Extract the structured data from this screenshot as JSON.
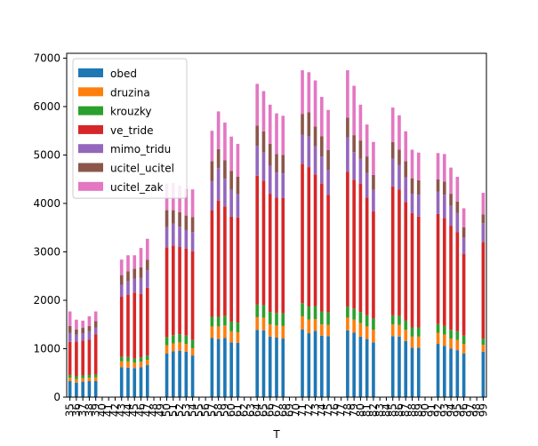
{
  "chart_data": {
    "type": "bar",
    "stacked": true,
    "xlabel": "T",
    "ylabel": "",
    "title": "",
    "ylim": [
      0,
      7100
    ],
    "yticks": [
      0,
      1000,
      2000,
      3000,
      4000,
      5000,
      6000,
      7000
    ],
    "grid": false,
    "legend": "top-left",
    "x_label_every": 1,
    "categories": [
      "35",
      "36",
      "37",
      "38",
      "39",
      "40",
      "41",
      "42",
      "43",
      "44",
      "45",
      "46",
      "47",
      "48",
      "49",
      "50",
      "51",
      "52",
      "53",
      "54",
      "55",
      "56",
      "57",
      "58",
      "59",
      "60",
      "61",
      "62",
      "63",
      "64",
      "65",
      "66",
      "67",
      "68",
      "69",
      "70",
      "71",
      "72",
      "73",
      "74",
      "75",
      "76",
      "77",
      "78",
      "79",
      "80",
      "81",
      "82",
      "83",
      "84",
      "85",
      "86",
      "87",
      "88",
      "89",
      "90",
      "91",
      "92",
      "93",
      "94",
      "95",
      "96",
      "97",
      "98",
      "99"
    ],
    "series": [
      {
        "name": "obed",
        "color": "#1f77b4",
        "values": [
          330,
          300,
          320,
          330,
          330,
          0,
          0,
          0,
          620,
          610,
          600,
          620,
          660,
          0,
          0,
          900,
          950,
          960,
          940,
          860,
          0,
          0,
          1220,
          1200,
          1220,
          1130,
          1120,
          0,
          0,
          1390,
          1380,
          1250,
          1230,
          1210,
          0,
          0,
          1400,
          1320,
          1370,
          1270,
          1260,
          0,
          0,
          1380,
          1330,
          1250,
          1200,
          1130,
          0,
          0,
          1260,
          1250,
          1160,
          1020,
          1020,
          0,
          0,
          1100,
          1060,
          1000,
          970,
          900,
          0,
          0,
          940
        ]
      },
      {
        "name": "druzina",
        "color": "#ff7f0e",
        "values": [
          70,
          70,
          70,
          70,
          80,
          0,
          0,
          0,
          120,
          130,
          110,
          110,
          110,
          0,
          0,
          170,
          160,
          170,
          160,
          150,
          0,
          0,
          240,
          260,
          260,
          230,
          220,
          0,
          0,
          260,
          260,
          250,
          250,
          260,
          0,
          0,
          270,
          280,
          240,
          230,
          230,
          0,
          0,
          260,
          270,
          280,
          260,
          260,
          0,
          0,
          240,
          240,
          230,
          230,
          230,
          0,
          0,
          230,
          230,
          210,
          210,
          200,
          0,
          0,
          140
        ]
      },
      {
        "name": "krouzky",
        "color": "#2ca02c",
        "values": [
          60,
          60,
          60,
          60,
          60,
          0,
          0,
          0,
          90,
          90,
          90,
          90,
          90,
          0,
          0,
          170,
          170,
          170,
          170,
          170,
          0,
          0,
          200,
          200,
          200,
          200,
          200,
          0,
          0,
          260,
          260,
          260,
          260,
          260,
          0,
          0,
          270,
          270,
          270,
          270,
          260,
          0,
          0,
          230,
          230,
          230,
          230,
          230,
          0,
          0,
          190,
          190,
          190,
          190,
          190,
          0,
          0,
          180,
          180,
          180,
          180,
          170,
          0,
          0,
          130
        ]
      },
      {
        "name": "ve_tride",
        "color": "#d62728",
        "values": [
          680,
          720,
          720,
          730,
          830,
          0,
          0,
          0,
          1250,
          1280,
          1360,
          1310,
          1400,
          0,
          0,
          1850,
          1850,
          1800,
          1800,
          1830,
          0,
          0,
          2200,
          2400,
          2260,
          2170,
          2170,
          0,
          0,
          2660,
          2570,
          2440,
          2380,
          2380,
          0,
          0,
          2880,
          2880,
          2720,
          2640,
          2430,
          0,
          0,
          2780,
          2660,
          2650,
          2430,
          2220,
          0,
          0,
          2660,
          2610,
          2450,
          2360,
          2290,
          0,
          0,
          2270,
          2230,
          2150,
          2050,
          1690,
          0,
          0,
          1990
        ]
      },
      {
        "name": "mimo_tridu",
        "color": "#9467bd",
        "values": [
          190,
          140,
          150,
          170,
          140,
          0,
          0,
          0,
          240,
          280,
          290,
          330,
          360,
          0,
          0,
          420,
          450,
          420,
          380,
          400,
          0,
          0,
          600,
          670,
          570,
          550,
          480,
          0,
          0,
          620,
          580,
          580,
          520,
          510,
          0,
          0,
          600,
          630,
          580,
          560,
          510,
          0,
          0,
          710,
          570,
          510,
          510,
          440,
          0,
          0,
          570,
          500,
          510,
          400,
          450,
          0,
          0,
          460,
          480,
          410,
          390,
          330,
          0,
          0,
          390
        ]
      },
      {
        "name": "ucitel_ucitel",
        "color": "#8c564b",
        "values": [
          140,
          110,
          110,
          110,
          130,
          0,
          0,
          0,
          200,
          210,
          200,
          220,
          220,
          0,
          0,
          350,
          280,
          300,
          300,
          310,
          0,
          0,
          410,
          390,
          380,
          390,
          360,
          0,
          0,
          420,
          440,
          450,
          380,
          380,
          0,
          0,
          430,
          500,
          410,
          420,
          410,
          0,
          0,
          410,
          350,
          380,
          340,
          310,
          0,
          0,
          350,
          320,
          330,
          320,
          300,
          0,
          0,
          260,
          270,
          250,
          240,
          220,
          0,
          0,
          180
        ]
      },
      {
        "name": "ucitel_zak",
        "color": "#e377c2",
        "values": [
          300,
          200,
          150,
          200,
          200,
          0,
          0,
          0,
          320,
          330,
          280,
          400,
          430,
          0,
          0,
          550,
          560,
          550,
          550,
          570,
          0,
          0,
          630,
          780,
          780,
          710,
          680,
          0,
          0,
          860,
          830,
          810,
          840,
          810,
          0,
          0,
          900,
          830,
          950,
          810,
          830,
          0,
          0,
          980,
          1020,
          740,
          660,
          680,
          0,
          0,
          710,
          710,
          620,
          590,
          570,
          0,
          0,
          540,
          570,
          540,
          510,
          390,
          0,
          0,
          450
        ]
      }
    ]
  }
}
